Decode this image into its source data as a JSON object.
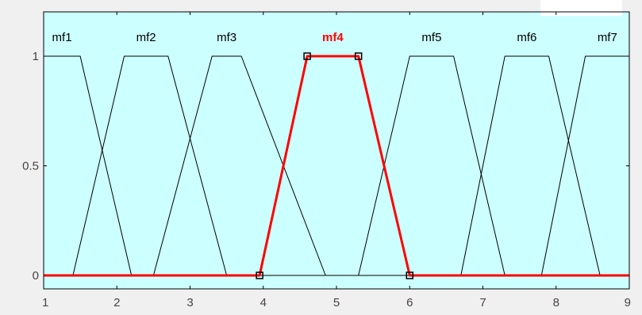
{
  "chart_data": {
    "type": "line",
    "title": "",
    "xlabel": "",
    "ylabel": "",
    "xlim": [
      1,
      9
    ],
    "ylim": [
      0,
      1
    ],
    "x_ticks": [
      "1",
      "2",
      "3",
      "4",
      "5",
      "6",
      "7",
      "8",
      "9"
    ],
    "y_ticks": [
      "0",
      "0.5",
      "1"
    ],
    "grid": false,
    "background_color": "#ccffff",
    "line_color": "#000000",
    "selected_color": "#ff0000",
    "selected_series": "mf4",
    "series": [
      {
        "name": "mf1",
        "shape": "trapmf",
        "params": [
          0.5,
          0.8,
          1.5,
          2.2
        ]
      },
      {
        "name": "mf2",
        "shape": "trapmf",
        "params": [
          1.4,
          2.1,
          2.7,
          3.5
        ]
      },
      {
        "name": "mf3",
        "shape": "trapmf",
        "params": [
          2.5,
          3.3,
          3.7,
          4.85
        ]
      },
      {
        "name": "mf4",
        "shape": "trapmf",
        "params": [
          3.95,
          4.6,
          5.3,
          6.0
        ]
      },
      {
        "name": "mf5",
        "shape": "trapmf",
        "params": [
          5.3,
          6.0,
          6.6,
          7.3
        ]
      },
      {
        "name": "mf6",
        "shape": "trapmf",
        "params": [
          6.7,
          7.3,
          7.9,
          8.6
        ]
      },
      {
        "name": "mf7",
        "shape": "trapmf",
        "params": [
          7.8,
          8.4,
          9.2,
          9.8
        ]
      }
    ]
  }
}
